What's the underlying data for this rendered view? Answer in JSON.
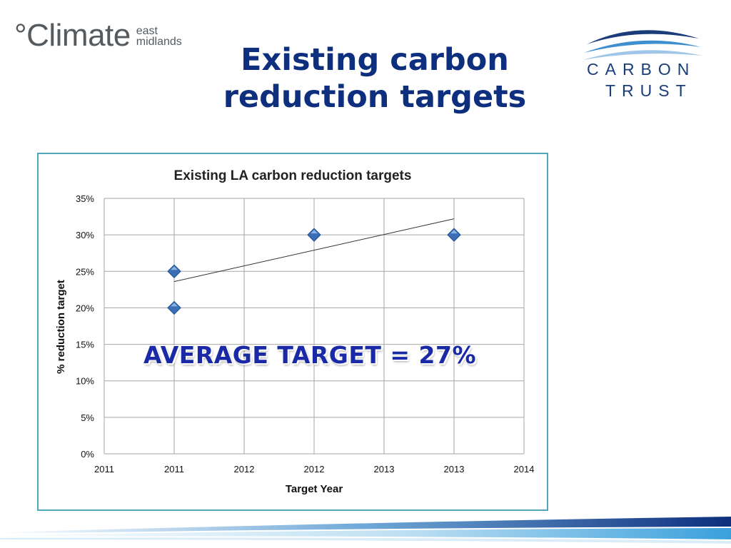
{
  "header": {
    "climate_logo_main": "°Climate",
    "climate_logo_sub1": "east",
    "climate_logo_sub2": "midlands",
    "title_line1": "Existing carbon",
    "title_line2": "reduction targets",
    "carbon_trust_line1": "CARBON",
    "carbon_trust_line2": "TRUST"
  },
  "overlay": {
    "text": "AVERAGE TARGET = 27%"
  },
  "colors": {
    "title": "#0d2f7d",
    "frame": "#4fa6b8",
    "marker": "#3a6fb5",
    "overlay": "#1a2aa6"
  },
  "chart_data": {
    "type": "scatter",
    "title": "Existing LA carbon reduction targets",
    "xlabel": "Target Year",
    "ylabel": "% reduction target",
    "x_tick_labels": [
      "2011",
      "2011",
      "2012",
      "2012",
      "2013",
      "2013",
      "2014"
    ],
    "y_tick_labels": [
      "0%",
      "5%",
      "10%",
      "15%",
      "20%",
      "25%",
      "30%",
      "35%"
    ],
    "ylim": [
      0,
      0.35
    ],
    "grid": true,
    "points": [
      {
        "x": "2011",
        "y": 0.25
      },
      {
        "x": "2011",
        "y": 0.2
      },
      {
        "x": "2012",
        "y": 0.3
      },
      {
        "x": "2013",
        "y": 0.3
      }
    ],
    "trendline": {
      "type": "linear",
      "start_y": 0.236,
      "end_y": 0.322
    }
  }
}
